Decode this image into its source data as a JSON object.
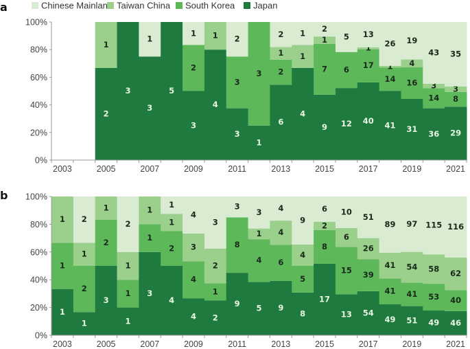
{
  "legend": [
    {
      "name": "Chinese Mainland",
      "color": "#d9ecd1"
    },
    {
      "name": "Taiwan China",
      "color": "#9bcf8c"
    },
    {
      "name": "South Korea",
      "color": "#5db85a"
    },
    {
      "name": "Japan",
      "color": "#1f7a3f"
    }
  ],
  "chart_data": [
    {
      "type": "bar",
      "stacked": "percent",
      "panel_label": "a",
      "title": "",
      "xlabel": "",
      "ylabel": "",
      "ylim": [
        0,
        100
      ],
      "yticks": [
        "0%",
        "20%",
        "40%",
        "60%",
        "80%",
        "100%"
      ],
      "xticks": [
        "2003",
        "2005",
        "2007",
        "2009",
        "2011",
        "2013",
        "2015",
        "2017",
        "2019",
        "2021"
      ],
      "categories": [
        "2003",
        "2004",
        "2005",
        "2006",
        "2007",
        "2008",
        "2009",
        "2010",
        "2011",
        "2012",
        "2013",
        "2014",
        "2015",
        "2016",
        "2017",
        "2018",
        "2019",
        "2020",
        "2021"
      ],
      "series": [
        {
          "name": "Japan",
          "values": [
            0,
            0,
            2,
            3,
            3,
            5,
            3,
            4,
            3,
            1,
            6,
            4,
            9,
            12,
            40,
            41,
            31,
            36,
            29
          ]
        },
        {
          "name": "South Korea",
          "values": [
            0,
            0,
            0,
            0,
            0,
            0,
            2,
            0,
            3,
            3,
            2,
            0,
            7,
            6,
            17,
            14,
            16,
            14,
            8
          ]
        },
        {
          "name": "Taiwan China",
          "values": [
            0,
            0,
            1,
            0,
            0,
            0,
            0,
            1,
            0,
            0,
            1,
            1,
            1,
            0,
            1,
            1,
            4,
            3,
            3
          ]
        },
        {
          "name": "Chinese Mainland",
          "values": [
            0,
            0,
            0,
            0,
            1,
            0,
            1,
            0,
            2,
            0,
            2,
            1,
            2,
            5,
            13,
            26,
            19,
            43,
            35
          ]
        }
      ]
    },
    {
      "type": "bar",
      "stacked": "percent",
      "panel_label": "b",
      "title": "",
      "xlabel": "",
      "ylabel": "",
      "ylim": [
        0,
        100
      ],
      "yticks": [
        "0%",
        "20%",
        "40%",
        "60%",
        "80%",
        "100%"
      ],
      "xticks": [
        "2003",
        "2005",
        "2007",
        "2009",
        "2011",
        "2013",
        "2015",
        "2017",
        "2019",
        "2021"
      ],
      "categories": [
        "2003",
        "2004",
        "2005",
        "2006",
        "2007",
        "2008",
        "2009",
        "2010",
        "2011",
        "2012",
        "2013",
        "2014",
        "2015",
        "2016",
        "2017",
        "2018",
        "2019",
        "2020",
        "2021"
      ],
      "series": [
        {
          "name": "Japan",
          "values": [
            1,
            1,
            3,
            1,
            3,
            4,
            4,
            2,
            9,
            5,
            9,
            8,
            17,
            13,
            54,
            49,
            51,
            49,
            46
          ]
        },
        {
          "name": "South Korea",
          "values": [
            1,
            2,
            2,
            1,
            1,
            2,
            4,
            1,
            8,
            4,
            6,
            5,
            8,
            15,
            39,
            41,
            41,
            53,
            40
          ]
        },
        {
          "name": "Taiwan China",
          "values": [
            1,
            1,
            1,
            1,
            1,
            1,
            3,
            2,
            0,
            1,
            4,
            4,
            2,
            6,
            26,
            41,
            54,
            58,
            62
          ]
        },
        {
          "name": "Chinese Mainland",
          "values": [
            0,
            2,
            0,
            2,
            0,
            1,
            4,
            3,
            3,
            3,
            4,
            9,
            6,
            10,
            51,
            89,
            97,
            115,
            116
          ]
        }
      ]
    }
  ]
}
